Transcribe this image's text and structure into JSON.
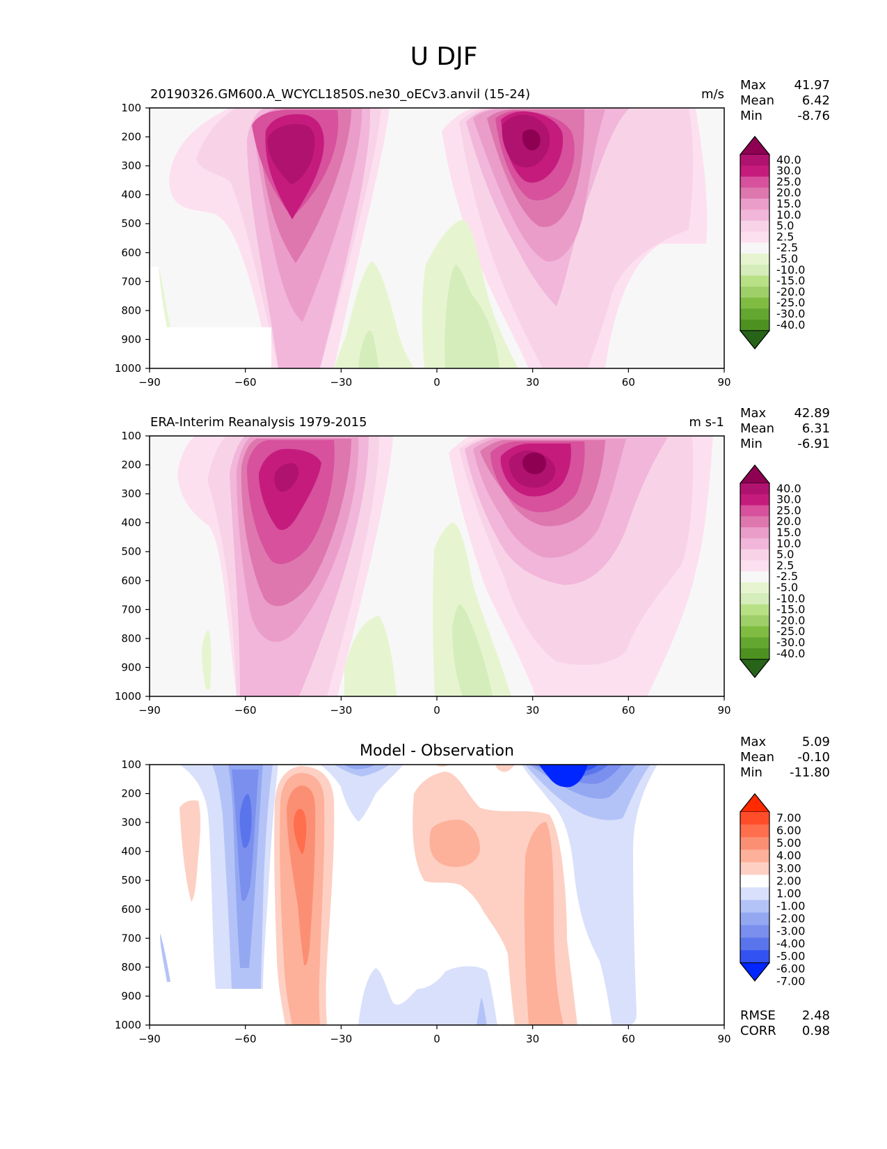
{
  "figure": {
    "title": "U DJF"
  },
  "colors": {
    "div_pink": [
      "#8e0152",
      "#b0126f",
      "#c51b7d",
      "#d7519d",
      "#de77ae",
      "#ea9dc8",
      "#f1b6da",
      "#f8d3e8",
      "#fde0ef",
      "#f7f7f7",
      "#e6f5d0",
      "#d4edbb",
      "#b8e186",
      "#9fcf68",
      "#7fbc41",
      "#64a730",
      "#4d9221",
      "#276419"
    ],
    "diff_rb": [
      "#ff2a00",
      "#ff4d2a",
      "#ff6e4d",
      "#fb8f74",
      "#fdb09a",
      "#fdd0c3",
      "#ffffff",
      "#d9e0fb",
      "#b4c3f7",
      "#94a8f2",
      "#7a8fee",
      "#5a75eb",
      "#3352f2",
      "#0026ff"
    ]
  },
  "chart_data": [
    {
      "type": "contour",
      "panel": "test",
      "left_title": "20190326.GM600.A_WCYCL1850S.ne30_oECv3.anvil (15-24)",
      "right_title": "m/s",
      "stats": [
        {
          "label": "Max",
          "value": "41.97"
        },
        {
          "label": "Mean",
          "value": "6.42"
        },
        {
          "label": "Min",
          "value": "-8.76"
        }
      ],
      "xlim": [
        -90,
        90
      ],
      "ylim": [
        1000,
        100
      ],
      "xticks": [
        "−90",
        "−60",
        "−30",
        "0",
        "30",
        "60",
        "90"
      ],
      "yticks": [
        "100",
        "200",
        "300",
        "400",
        "500",
        "600",
        "700",
        "800",
        "900",
        "1000"
      ],
      "colorbar": {
        "levels": [
          "40.0",
          "30.0",
          "25.0",
          "20.0",
          "15.0",
          "10.0",
          "5.0",
          "2.5",
          "-2.5",
          "-5.0",
          "-10.0",
          "-15.0",
          "-20.0",
          "-25.0",
          "-30.0",
          "-40.0"
        ],
        "extend": "both"
      },
      "jets": [
        {
          "lat": -47,
          "pres": 230,
          "peak": 35
        },
        {
          "lat": 30,
          "pres": 200,
          "peak": 42
        }
      ],
      "easterlies": [
        {
          "lat": 8,
          "pres": 850,
          "value": -8.8
        },
        {
          "lat": -20,
          "pres": 900,
          "value": -5
        }
      ],
      "missing_region": {
        "lat_max": -52,
        "pres_min": 865
      }
    },
    {
      "type": "contour",
      "panel": "reference",
      "left_title": "ERA-Interim Reanalysis 1979-2015",
      "right_title": "m s-1",
      "stats": [
        {
          "label": "Max",
          "value": "42.89"
        },
        {
          "label": "Mean",
          "value": "6.31"
        },
        {
          "label": "Min",
          "value": "-6.91"
        }
      ],
      "xlim": [
        -90,
        90
      ],
      "ylim": [
        1000,
        100
      ],
      "xticks": [
        "−90",
        "−60",
        "−30",
        "0",
        "30",
        "60",
        "90"
      ],
      "yticks": [
        "100",
        "200",
        "300",
        "400",
        "500",
        "600",
        "700",
        "800",
        "900",
        "1000"
      ],
      "colorbar": {
        "levels": [
          "40.0",
          "30.0",
          "25.0",
          "20.0",
          "15.0",
          "10.0",
          "5.0",
          "2.5",
          "-2.5",
          "-5.0",
          "-10.0",
          "-15.0",
          "-20.0",
          "-25.0",
          "-30.0",
          "-40.0"
        ],
        "extend": "both"
      },
      "jets": [
        {
          "lat": -50,
          "pres": 220,
          "peak": 34
        },
        {
          "lat": 31,
          "pres": 200,
          "peak": 43
        }
      ],
      "easterlies": [
        {
          "lat": 8,
          "pres": 880,
          "value": -6.9
        },
        {
          "lat": -20,
          "pres": 900,
          "value": -4
        }
      ]
    },
    {
      "type": "contour",
      "panel": "difference",
      "center_title": "Model - Observation",
      "stats": [
        {
          "label": "Max",
          "value": "5.09"
        },
        {
          "label": "Mean",
          "value": "-0.10"
        },
        {
          "label": "Min",
          "value": "-11.80"
        }
      ],
      "extra_stats": [
        {
          "label": "RMSE",
          "value": "2.48"
        },
        {
          "label": "CORR",
          "value": "0.98"
        }
      ],
      "xlim": [
        -90,
        90
      ],
      "ylim": [
        1000,
        100
      ],
      "xticks": [
        "−90",
        "−60",
        "−30",
        "0",
        "30",
        "60",
        "90"
      ],
      "yticks": [
        "100",
        "200",
        "300",
        "400",
        "500",
        "600",
        "700",
        "800",
        "900",
        "1000"
      ],
      "colorbar": {
        "levels": [
          "7.00",
          "6.00",
          "5.00",
          "4.00",
          "3.00",
          "2.00",
          "1.00",
          "-1.00",
          "-2.00",
          "-3.00",
          "-4.00",
          "-5.00",
          "-6.00",
          "-7.00"
        ],
        "extend": "both"
      },
      "features": [
        {
          "lat": -40,
          "pres": 400,
          "value": 5.0
        },
        {
          "lat": -62,
          "pres": 380,
          "value": -5.5
        },
        {
          "lat": 38,
          "pres": 100,
          "value": -11.8
        },
        {
          "lat": 2,
          "pres": 380,
          "value": 3.0
        },
        {
          "lat": 30,
          "pres": 700,
          "value": 2.5
        }
      ]
    }
  ]
}
